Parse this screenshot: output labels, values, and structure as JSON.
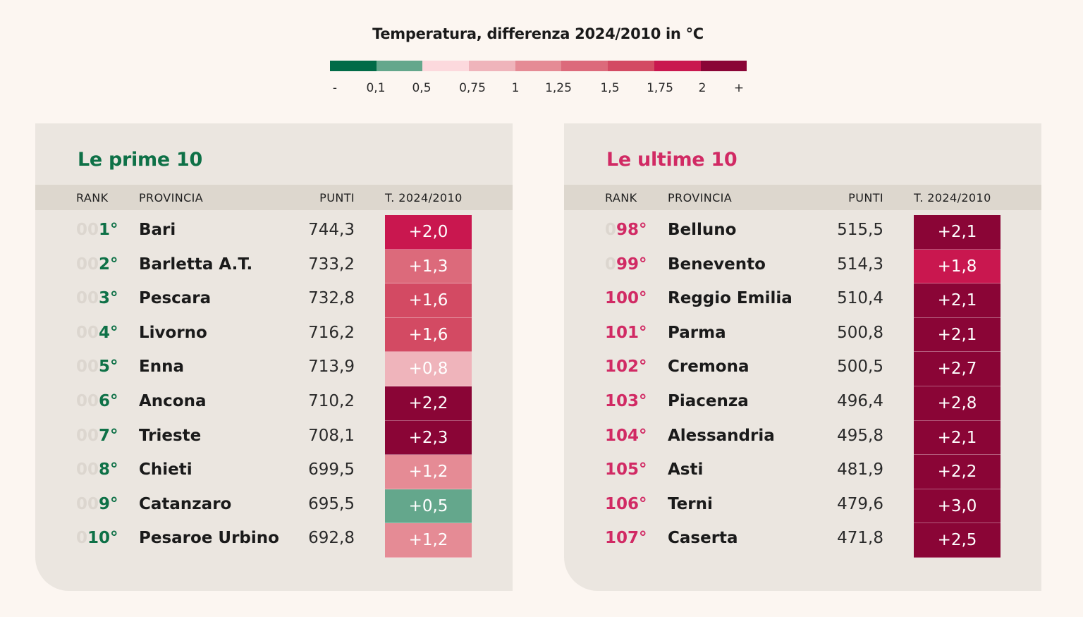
{
  "legend": {
    "title": "Temperatura, differenza 2024/2010 in °C",
    "colors": [
      "#016b47",
      "#64a78c",
      "#fcd9dd",
      "#efb4bb",
      "#e58b95",
      "#dc6a7b",
      "#d34a63",
      "#c9174f",
      "#8a0536"
    ],
    "ticks": [
      "-",
      "0,1",
      "0,5",
      "0,75",
      "1",
      "1,25",
      "1,5",
      "1,75",
      "2",
      "+"
    ]
  },
  "chart_data": [
    {
      "type": "table",
      "title": "Le prime 10",
      "title_color": "#0e7147",
      "rank_color": "#0e7147",
      "columns": [
        "RANK",
        "PROVINCIA",
        "PUNTI",
        "T. 2024/2010"
      ],
      "rows": [
        {
          "rank_pad": "00",
          "rank": "1°",
          "provincia": "Bari",
          "punti": "744,3",
          "temp": "+2,0",
          "temp_color": "#c9174f"
        },
        {
          "rank_pad": "00",
          "rank": "2°",
          "provincia": "Barletta A.T.",
          "punti": "733,2",
          "temp": "+1,3",
          "temp_color": "#dc6a7b"
        },
        {
          "rank_pad": "00",
          "rank": "3°",
          "provincia": "Pescara",
          "punti": "732,8",
          "temp": "+1,6",
          "temp_color": "#d34a63"
        },
        {
          "rank_pad": "00",
          "rank": "4°",
          "provincia": "Livorno",
          "punti": "716,2",
          "temp": "+1,6",
          "temp_color": "#d34a63"
        },
        {
          "rank_pad": "00",
          "rank": "5°",
          "provincia": "Enna",
          "punti": "713,9",
          "temp": "+0,8",
          "temp_color": "#efb4bb"
        },
        {
          "rank_pad": "00",
          "rank": "6°",
          "provincia": "Ancona",
          "punti": "710,2",
          "temp": "+2,2",
          "temp_color": "#8a0536"
        },
        {
          "rank_pad": "00",
          "rank": "7°",
          "provincia": "Trieste",
          "punti": "708,1",
          "temp": "+2,3",
          "temp_color": "#8a0536"
        },
        {
          "rank_pad": "00",
          "rank": "8°",
          "provincia": "Chieti",
          "punti": "699,5",
          "temp": "+1,2",
          "temp_color": "#e58b95"
        },
        {
          "rank_pad": "00",
          "rank": "9°",
          "provincia": "Catanzaro",
          "punti": "695,5",
          "temp": "+0,5",
          "temp_color": "#64a78c"
        },
        {
          "rank_pad": "0",
          "rank": "10°",
          "provincia": "Pesaroe Urbino",
          "punti": "692,8",
          "temp": "+1,2",
          "temp_color": "#e58b95"
        }
      ]
    },
    {
      "type": "table",
      "title": "Le ultime 10",
      "title_color": "#d12a64",
      "rank_color": "#d12a64",
      "columns": [
        "RANK",
        "PROVINCIA",
        "PUNTI",
        "T. 2024/2010"
      ],
      "rows": [
        {
          "rank_pad": "0",
          "rank": "98°",
          "provincia": "Belluno",
          "punti": "515,5",
          "temp": "+2,1",
          "temp_color": "#8a0536"
        },
        {
          "rank_pad": "0",
          "rank": "99°",
          "provincia": "Benevento",
          "punti": "514,3",
          "temp": "+1,8",
          "temp_color": "#c9174f"
        },
        {
          "rank_pad": "",
          "rank": "100°",
          "provincia": "Reggio Emilia",
          "punti": "510,4",
          "temp": "+2,1",
          "temp_color": "#8a0536"
        },
        {
          "rank_pad": "",
          "rank": "101°",
          "provincia": "Parma",
          "punti": "500,8",
          "temp": "+2,1",
          "temp_color": "#8a0536"
        },
        {
          "rank_pad": "",
          "rank": "102°",
          "provincia": "Cremona",
          "punti": "500,5",
          "temp": "+2,7",
          "temp_color": "#8a0536"
        },
        {
          "rank_pad": "",
          "rank": "103°",
          "provincia": "Piacenza",
          "punti": "496,4",
          "temp": "+2,8",
          "temp_color": "#8a0536"
        },
        {
          "rank_pad": "",
          "rank": "104°",
          "provincia": "Alessandria",
          "punti": "495,8",
          "temp": "+2,1",
          "temp_color": "#8a0536"
        },
        {
          "rank_pad": "",
          "rank": "105°",
          "provincia": "Asti",
          "punti": "481,9",
          "temp": "+2,2",
          "temp_color": "#8a0536"
        },
        {
          "rank_pad": "",
          "rank": "106°",
          "provincia": "Terni",
          "punti": "479,6",
          "temp": "+3,0",
          "temp_color": "#8a0536"
        },
        {
          "rank_pad": "",
          "rank": "107°",
          "provincia": "Caserta",
          "punti": "471,8",
          "temp": "+2,5",
          "temp_color": "#8a0536"
        }
      ]
    }
  ]
}
